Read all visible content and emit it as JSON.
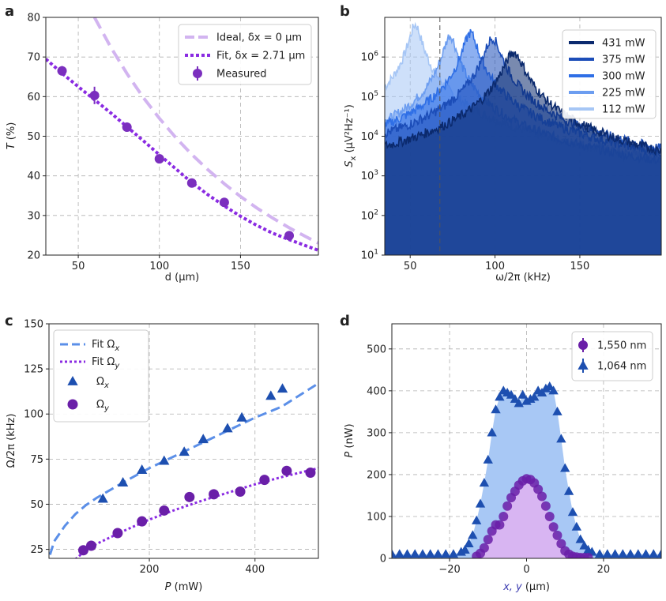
{
  "chart_data": [
    {
      "panel": "a",
      "type": "line",
      "xlabel": "d (μm)",
      "ylabel": "T (%)",
      "xlim": [
        30,
        198
      ],
      "ylim": [
        20,
        80
      ],
      "xticks": [
        50,
        100,
        150
      ],
      "yticks": [
        20,
        30,
        40,
        50,
        60,
        70,
        80
      ],
      "grid": true,
      "legend_position": "top-right",
      "series": [
        {
          "name": "Ideal, δx = 0 μm",
          "style": "dashed",
          "color": "#d2b4f0",
          "x": [
            60,
            70,
            80,
            90,
            100,
            110,
            120,
            130,
            140,
            150,
            160,
            170,
            180,
            190,
            198
          ],
          "y": [
            80,
            72.5,
            65.8,
            59.8,
            54.5,
            49.7,
            45.4,
            41.5,
            38,
            34.8,
            31.9,
            29.3,
            26.9,
            24.7,
            23
          ]
        },
        {
          "name": "Fit, δx = 2.71 μm",
          "style": "dotted",
          "color": "#8a2be2",
          "x": [
            30,
            40,
            50,
            60,
            70,
            80,
            90,
            100,
            110,
            120,
            130,
            140,
            150,
            160,
            170,
            180,
            190,
            198
          ],
          "y": [
            69.5,
            65.9,
            62.5,
            59.2,
            55.9,
            52.4,
            48.9,
            45.3,
            41.8,
            38.3,
            35.2,
            32.4,
            29.8,
            27.5,
            25.5,
            23.9,
            22.4,
            21.2
          ]
        },
        {
          "name": "Measured",
          "style": "markers",
          "color": "#7b2fbe",
          "x": [
            40,
            60,
            80,
            100,
            120,
            140,
            180
          ],
          "y": [
            66.5,
            60.3,
            52.3,
            44.3,
            38.2,
            33.3,
            24.9
          ],
          "err": [
            1.2,
            2.2,
            1,
            1,
            1,
            1,
            0.8
          ]
        }
      ]
    },
    {
      "panel": "b",
      "type": "area",
      "xlabel": "ω/2π (kHz)",
      "ylabel": "Sx (μV²Hz⁻¹)",
      "ylabel_main": "S",
      "ylabel_sub": "x",
      "ylabel_rest": " (μV²Hz⁻¹)",
      "xlim": [
        35,
        198
      ],
      "ylim_log": [
        1,
        7
      ],
      "xticks": [
        50,
        100,
        150
      ],
      "yticks_exp": [
        1,
        2,
        3,
        4,
        5,
        6
      ],
      "ytick_base": "10",
      "yscale": "log",
      "grid": true,
      "legend_position": "top-right",
      "vline_x": 67.5,
      "series": [
        {
          "name": "431 mW",
          "color": "#0b2a6e",
          "peak": 111,
          "peak_val": 1300000,
          "base": 160,
          "floor_low": 40,
          "width": 5
        },
        {
          "name": "375 mW",
          "color": "#1c4db8",
          "peak": 98.5,
          "peak_val": 3000000,
          "base": 150,
          "floor_low": 40,
          "width": 4
        },
        {
          "name": "300 mW",
          "color": "#2f6fe6",
          "peak": 85.5,
          "peak_val": 4000000,
          "base": 140,
          "floor_low": 40,
          "width": 3.5
        },
        {
          "name": "225 mW",
          "color": "#6c9df0",
          "peak": 73.5,
          "peak_val": 3500000,
          "base": 120,
          "floor_low": 40,
          "width": 3.2
        },
        {
          "name": "112 mW",
          "color": "#a6c6f5",
          "peak": 53,
          "peak_val": 6500000,
          "base": 110,
          "floor_low": 22,
          "width": 3
        }
      ]
    },
    {
      "panel": "c",
      "type": "scatter",
      "xlabel": "P (mW)",
      "ylabel": "Ω/2π (kHz)",
      "xlim": [
        10,
        520
      ],
      "ylim": [
        20,
        150
      ],
      "xticks": [
        200,
        400
      ],
      "yticks": [
        25,
        50,
        75,
        100,
        125,
        150
      ],
      "grid": true,
      "legend_position": "top-left",
      "series": [
        {
          "name": "Fit Ωx",
          "legend_main": "Fit Ω",
          "legend_sub": "x",
          "style": "dashed",
          "color": "#5b8fe8",
          "x": [
            12,
            20,
            40,
            60,
            80,
            100,
            150,
            200,
            250,
            300,
            350,
            400,
            450,
            520
          ],
          "y": [
            22,
            29.5,
            38,
            44.5,
            49.5,
            53.5,
            62,
            70,
            77,
            84,
            91,
            98,
            104,
            117
          ]
        },
        {
          "name": "Fit Ωy",
          "legend_main": "Fit Ω",
          "legend_sub": "y",
          "style": "dotted",
          "color": "#8a2be2",
          "x": [
            60,
            80,
            100,
            150,
            200,
            250,
            300,
            350,
            400,
            450,
            520
          ],
          "y": [
            19.5,
            24.5,
            28,
            35,
            41.5,
            47,
            52,
            56.5,
            61,
            65,
            70
          ]
        },
        {
          "name": "Ωx",
          "legend_main": "Ω",
          "legend_sub": "x",
          "style": "triangle",
          "color": "#1d4fb0",
          "x": [
            112,
            150,
            186,
            228,
            266,
            302,
            348,
            375,
            430,
            452
          ],
          "y": [
            53,
            62,
            69,
            74,
            79,
            86,
            92,
            98,
            110,
            114
          ]
        },
        {
          "name": "Ωy",
          "legend_main": "Ω",
          "legend_sub": "y",
          "style": "circle",
          "color": "#6a1fa8",
          "x": [
            75,
            90,
            140,
            186,
            228,
            276,
            322,
            372,
            418,
            460,
            505
          ],
          "y": [
            24.5,
            27,
            34,
            40.5,
            46.5,
            54,
            55.5,
            57,
            63.5,
            68.5,
            67.5
          ]
        }
      ]
    },
    {
      "panel": "d",
      "type": "area",
      "xlabel": "x, y (μm)",
      "ylabel": "P (nW)",
      "xlim": [
        -35,
        35
      ],
      "ylim": [
        0,
        560
      ],
      "xticks": [
        -20,
        0,
        20
      ],
      "yticks": [
        0,
        100,
        200,
        300,
        400,
        500
      ],
      "grid": true,
      "legend_position": "top-right",
      "series": [
        {
          "name": "1,550 nm",
          "style": "circle",
          "color": "#6a1fa8",
          "fill": "#d8b5f2",
          "x": [
            -13,
            -12,
            -11,
            -10,
            -9,
            -8,
            -7,
            -6,
            -5,
            -4,
            -3,
            -2,
            -1,
            0,
            1,
            2,
            3,
            4,
            5,
            6,
            7,
            8,
            9,
            10,
            11,
            12,
            13,
            14,
            15,
            16
          ],
          "y": [
            5,
            12,
            25,
            45,
            65,
            80,
            80,
            100,
            125,
            145,
            160,
            175,
            185,
            190,
            188,
            180,
            165,
            148,
            125,
            100,
            75,
            55,
            35,
            18,
            10,
            5,
            3,
            2,
            2,
            2
          ]
        },
        {
          "name": "1,064 nm",
          "style": "triangle",
          "color": "#1d4fb0",
          "fill": "#a8c8f5",
          "x": [
            -35,
            -33,
            -31,
            -29,
            -27,
            -25,
            -23,
            -21,
            -19,
            -17,
            -16,
            -15,
            -14,
            -13,
            -12,
            -11,
            -10,
            -9,
            -8,
            -7,
            -6,
            -5,
            -4,
            -3,
            -2,
            -1,
            0,
            1,
            2,
            3,
            4,
            5,
            6,
            7,
            8,
            9,
            10,
            11,
            12,
            13,
            14,
            15,
            16,
            17,
            19,
            21,
            23,
            25,
            27,
            29,
            31,
            33,
            35
          ],
          "y": [
            10,
            10,
            10,
            10,
            10,
            10,
            10,
            10,
            10,
            15,
            20,
            35,
            55,
            90,
            130,
            180,
            235,
            300,
            355,
            385,
            400,
            395,
            390,
            380,
            370,
            390,
            375,
            380,
            385,
            400,
            395,
            405,
            410,
            400,
            350,
            285,
            215,
            160,
            110,
            75,
            45,
            30,
            20,
            15,
            10,
            10,
            10,
            10,
            10,
            10,
            10,
            10,
            10
          ]
        }
      ]
    }
  ]
}
